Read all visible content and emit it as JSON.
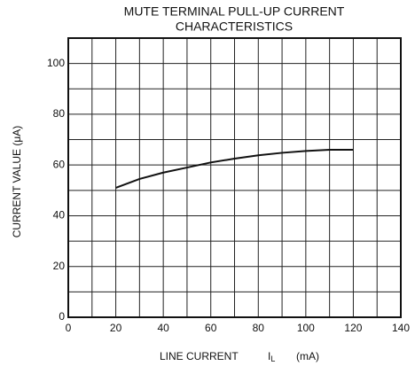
{
  "chart_data": {
    "type": "line",
    "title": [
      "MUTE TERMINAL PULL-UP CURRENT",
      "CHARACTERISTICS"
    ],
    "xlabel": "LINE CURRENT",
    "x_symbol": "I",
    "x_symbol_sub": "L",
    "x_unit": "(mA)",
    "ylabel": "CURRENT VALUE  (μA)",
    "x": [
      20,
      30,
      40,
      50,
      60,
      70,
      80,
      90,
      100,
      110,
      120
    ],
    "series": [
      {
        "color": "#111111",
        "values": [
          51,
          54.5,
          57,
          59,
          61,
          62.5,
          63.8,
          64.8,
          65.5,
          66,
          66
        ]
      }
    ],
    "xlim": [
      0,
      140
    ],
    "xticks": [
      0,
      20,
      40,
      60,
      80,
      100,
      120,
      140
    ],
    "xgrid": [
      0,
      10,
      20,
      30,
      40,
      50,
      60,
      70,
      80,
      90,
      100,
      110,
      120,
      130,
      140
    ],
    "ylim": [
      0,
      110
    ],
    "yticks": [
      0,
      20,
      40,
      60,
      80,
      100
    ],
    "ygrid": [
      0,
      10,
      20,
      30,
      40,
      50,
      60,
      70,
      80,
      90,
      100,
      110
    ],
    "grid": true
  }
}
